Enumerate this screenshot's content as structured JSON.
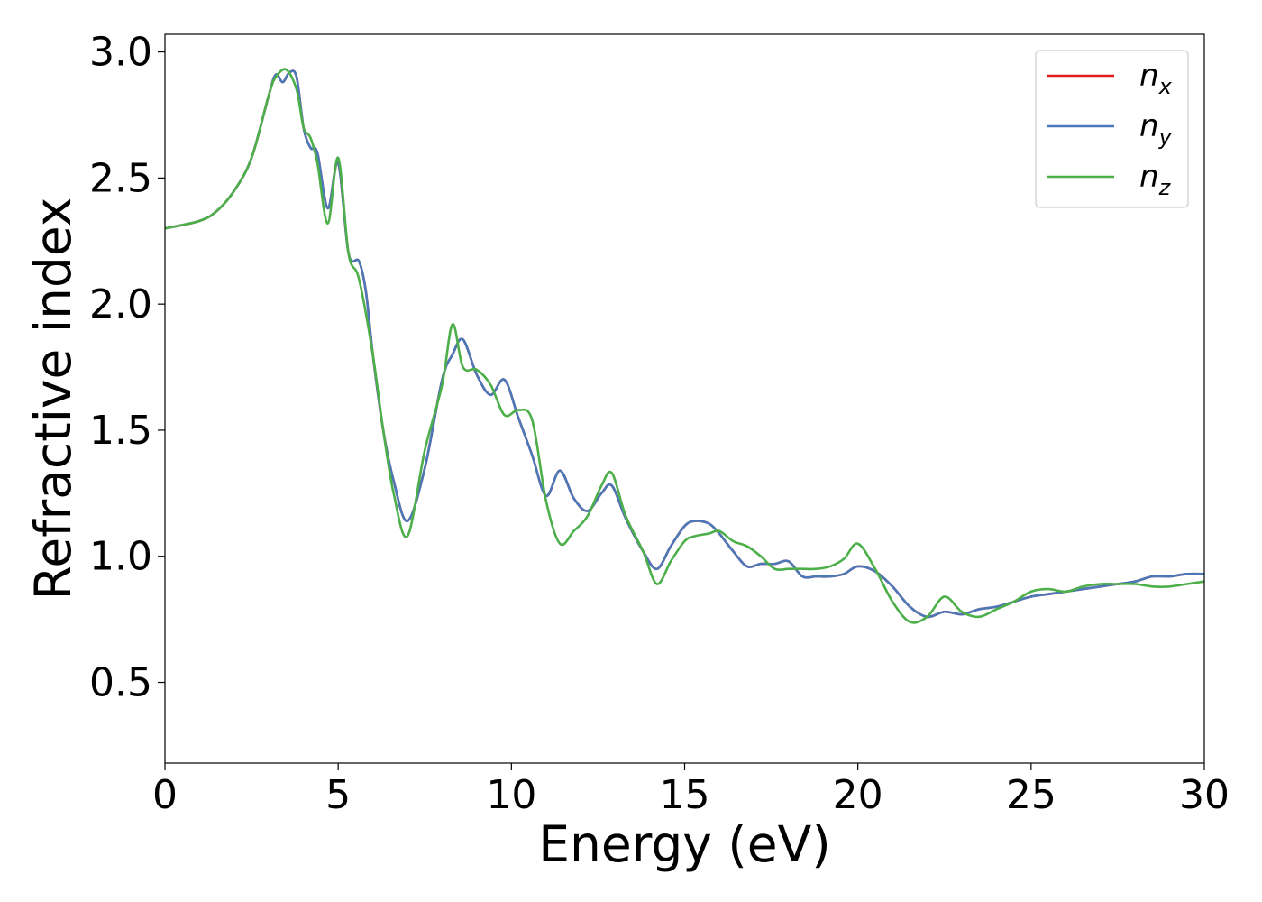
{
  "chart_data": {
    "type": "line",
    "xlabel": "Energy (eV)",
    "ylabel": "Refractive index",
    "xlim": [
      0,
      30
    ],
    "ylim": [
      0.18,
      3.07
    ],
    "xticks": [
      0,
      5,
      10,
      15,
      20,
      25,
      30
    ],
    "xtick_labels": [
      "0",
      "5",
      "10",
      "15",
      "20",
      "25",
      "30"
    ],
    "yticks": [
      0.5,
      1.0,
      1.5,
      2.0,
      2.5,
      3.0
    ],
    "ytick_labels": [
      "0.5",
      "1.0",
      "1.5",
      "2.0",
      "2.5",
      "3.0"
    ],
    "grid": false,
    "legend_position": "top-right",
    "series": [
      {
        "name": "n",
        "subscript": "x",
        "color": "#e41a1c",
        "x": [
          0,
          1,
          1.5,
          2,
          2.5,
          3,
          3.2,
          3.4,
          3.6,
          3.8,
          4,
          4.2,
          4.4,
          4.7,
          5,
          5.3,
          5.6,
          5.8,
          6,
          6.3,
          6.6,
          7,
          7.5,
          8,
          8.3,
          8.6,
          9,
          9.4,
          9.8,
          10.2,
          10.6,
          11,
          11.4,
          11.8,
          12.2,
          12.6,
          12.9,
          13.3,
          13.8,
          14.2,
          14.6,
          15,
          15.3,
          15.7,
          16,
          16.4,
          16.8,
          17.2,
          17.6,
          18,
          18.4,
          18.8,
          19.2,
          19.6,
          20,
          20.5,
          21,
          21.5,
          22,
          22.5,
          23,
          23.5,
          24,
          24.5,
          25,
          25.5,
          26,
          26.5,
          27,
          27.5,
          28,
          28.5,
          29,
          29.5,
          30
        ],
        "values": [
          2.3,
          2.33,
          2.37,
          2.45,
          2.58,
          2.83,
          2.91,
          2.88,
          2.92,
          2.9,
          2.7,
          2.62,
          2.6,
          2.38,
          2.56,
          2.2,
          2.17,
          2.05,
          1.8,
          1.5,
          1.3,
          1.14,
          1.35,
          1.7,
          1.8,
          1.86,
          1.72,
          1.64,
          1.7,
          1.55,
          1.4,
          1.24,
          1.34,
          1.23,
          1.18,
          1.25,
          1.28,
          1.15,
          1.02,
          0.95,
          1.04,
          1.12,
          1.14,
          1.13,
          1.09,
          1.02,
          0.96,
          0.97,
          0.97,
          0.98,
          0.92,
          0.92,
          0.92,
          0.93,
          0.96,
          0.94,
          0.88,
          0.8,
          0.76,
          0.78,
          0.77,
          0.79,
          0.8,
          0.82,
          0.84,
          0.85,
          0.86,
          0.87,
          0.88,
          0.89,
          0.9,
          0.92,
          0.92,
          0.93,
          0.93
        ]
      },
      {
        "name": "n",
        "subscript": "y",
        "color": "#4a78b8",
        "x": [
          0,
          1,
          1.5,
          2,
          2.5,
          3,
          3.2,
          3.4,
          3.6,
          3.8,
          4,
          4.2,
          4.4,
          4.7,
          5,
          5.3,
          5.6,
          5.8,
          6,
          6.3,
          6.6,
          7,
          7.5,
          8,
          8.3,
          8.6,
          9,
          9.4,
          9.8,
          10.2,
          10.6,
          11,
          11.4,
          11.8,
          12.2,
          12.6,
          12.9,
          13.3,
          13.8,
          14.2,
          14.6,
          15,
          15.3,
          15.7,
          16,
          16.4,
          16.8,
          17.2,
          17.6,
          18,
          18.4,
          18.8,
          19.2,
          19.6,
          20,
          20.5,
          21,
          21.5,
          22,
          22.5,
          23,
          23.5,
          24,
          24.5,
          25,
          25.5,
          26,
          26.5,
          27,
          27.5,
          28,
          28.5,
          29,
          29.5,
          30
        ],
        "values": [
          2.3,
          2.33,
          2.37,
          2.45,
          2.58,
          2.83,
          2.91,
          2.88,
          2.92,
          2.9,
          2.7,
          2.62,
          2.6,
          2.38,
          2.56,
          2.2,
          2.17,
          2.05,
          1.8,
          1.5,
          1.3,
          1.14,
          1.35,
          1.7,
          1.8,
          1.86,
          1.72,
          1.64,
          1.7,
          1.55,
          1.4,
          1.24,
          1.34,
          1.23,
          1.18,
          1.25,
          1.28,
          1.15,
          1.02,
          0.95,
          1.04,
          1.12,
          1.14,
          1.13,
          1.09,
          1.02,
          0.96,
          0.97,
          0.97,
          0.98,
          0.92,
          0.92,
          0.92,
          0.93,
          0.96,
          0.94,
          0.88,
          0.8,
          0.76,
          0.78,
          0.77,
          0.79,
          0.8,
          0.82,
          0.84,
          0.85,
          0.86,
          0.87,
          0.88,
          0.89,
          0.9,
          0.92,
          0.92,
          0.93,
          0.93
        ]
      },
      {
        "name": "n",
        "subscript": "z",
        "color": "#4daf4a",
        "x": [
          0,
          1,
          1.5,
          2,
          2.5,
          3,
          3.2,
          3.5,
          3.8,
          4,
          4.2,
          4.4,
          4.7,
          5,
          5.3,
          5.6,
          6,
          6.3,
          6.6,
          7,
          7.5,
          8,
          8.3,
          8.6,
          9,
          9.4,
          9.8,
          10.2,
          10.6,
          11,
          11.4,
          11.8,
          12.2,
          12.6,
          12.9,
          13.3,
          13.8,
          14.2,
          14.6,
          15,
          15.3,
          15.7,
          16,
          16.4,
          16.8,
          17.2,
          17.6,
          18,
          18.4,
          18.8,
          19.2,
          19.6,
          20,
          20.5,
          21,
          21.5,
          22,
          22.5,
          23,
          23.5,
          24,
          24.5,
          25,
          25.5,
          26,
          26.5,
          27,
          27.5,
          28,
          28.5,
          29,
          29.5,
          30
        ],
        "values": [
          2.3,
          2.33,
          2.37,
          2.45,
          2.58,
          2.83,
          2.9,
          2.93,
          2.85,
          2.7,
          2.66,
          2.56,
          2.32,
          2.58,
          2.2,
          2.1,
          1.8,
          1.5,
          1.25,
          1.08,
          1.42,
          1.68,
          1.92,
          1.75,
          1.74,
          1.68,
          1.56,
          1.58,
          1.54,
          1.22,
          1.05,
          1.1,
          1.16,
          1.28,
          1.33,
          1.16,
          1.02,
          0.89,
          0.98,
          1.06,
          1.08,
          1.09,
          1.1,
          1.06,
          1.04,
          1.0,
          0.95,
          0.95,
          0.95,
          0.95,
          0.96,
          0.99,
          1.05,
          0.95,
          0.82,
          0.74,
          0.76,
          0.84,
          0.78,
          0.76,
          0.79,
          0.82,
          0.86,
          0.87,
          0.86,
          0.88,
          0.89,
          0.89,
          0.89,
          0.88,
          0.88,
          0.89,
          0.9
        ]
      }
    ]
  }
}
